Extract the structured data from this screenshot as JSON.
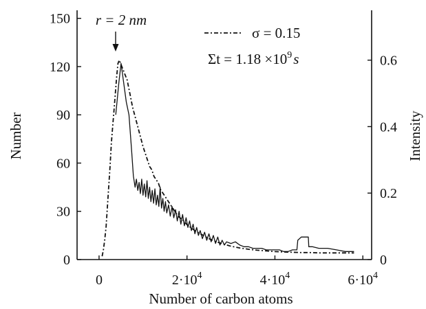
{
  "chart_data": {
    "type": "line",
    "xlabel": "Number of carbon atoms",
    "ylabel_left": "Number",
    "ylabel_right": "Intensity",
    "xlim": [
      -5000,
      62000
    ],
    "ylim_left": [
      0,
      155
    ],
    "ylim_right": [
      0,
      0.75
    ],
    "x_ticks": [
      0,
      20000,
      40000,
      60000
    ],
    "x_tick_labels": [
      "0",
      "2·10",
      "4·10",
      "6·10"
    ],
    "x_tick_label_exponent": "4",
    "y_left_ticks": [
      0,
      30,
      60,
      90,
      120,
      150
    ],
    "y_left_tick_labels": [
      "0",
      "30",
      "60",
      "90",
      "120",
      "150"
    ],
    "y_right_ticks": [
      0,
      0.2,
      0.4,
      0.6
    ],
    "y_right_tick_labels": [
      "0",
      "0.2",
      "0.4",
      "0.6"
    ],
    "grid": false,
    "legend_position": "top-right",
    "annotations": {
      "peak_label": "r = 2 nm",
      "legend_sigma": "σ = 0.15",
      "legend_time_prefix": "Σt = 1.18 ×10",
      "legend_time_exponent": "9",
      "legend_time_unit": "s"
    },
    "series": [
      {
        "style": "solid",
        "axis": "left",
        "x": [
          3800,
          4500,
          5000,
          5600,
          6200,
          6800,
          7400,
          7800,
          8200,
          8500,
          8800,
          9100,
          9400,
          9700,
          10000,
          10300,
          10600,
          10900,
          11200,
          11500,
          11800,
          12100,
          12400,
          12700,
          13000,
          13300,
          13600,
          13900,
          14200,
          14500,
          14800,
          15100,
          15400,
          15800,
          16200,
          16600,
          17000,
          17400,
          17800,
          18200,
          18600,
          19000,
          19400,
          19800,
          20200,
          20600,
          21000,
          21400,
          21800,
          22200,
          22600,
          23000,
          23500,
          24000,
          24500,
          25000,
          25500,
          26000,
          26500,
          27000,
          27500,
          28000,
          28500,
          29000,
          30000,
          31000,
          32000,
          33000,
          34000,
          35000,
          36000,
          37000,
          38000,
          39000,
          40000,
          41000,
          42000,
          43000,
          44000,
          45000,
          45200,
          46000,
          47000,
          47600,
          47700,
          48500,
          50000,
          52000,
          54000,
          56000,
          58000
        ],
        "y": [
          90,
          110,
          122,
          110,
          98,
          90,
          68,
          52,
          45,
          50,
          43,
          48,
          41,
          50,
          40,
          47,
          39,
          49,
          38,
          45,
          36,
          43,
          35,
          44,
          34,
          40,
          33,
          45,
          32,
          38,
          30,
          36,
          29,
          34,
          27,
          33,
          26,
          31,
          24,
          30,
          22,
          28,
          21,
          26,
          20,
          24,
          18,
          22,
          16,
          20,
          15,
          18,
          13,
          17,
          12,
          16,
          11,
          15,
          10,
          14,
          9,
          12,
          9,
          11,
          10,
          11,
          9,
          8,
          8,
          7,
          7,
          7,
          6,
          6,
          6,
          6,
          5,
          5,
          6,
          6,
          12,
          14,
          14,
          14,
          8,
          8,
          7,
          7,
          6,
          5,
          5
        ]
      },
      {
        "style": "dashed",
        "axis": "right",
        "name": "σ = 0.15",
        "x": [
          700,
          1000,
          1300,
          1600,
          1900,
          2200,
          2500,
          2800,
          3100,
          3400,
          3700,
          4000,
          4300,
          4600,
          4900,
          5200,
          5500,
          5800,
          6100,
          6400,
          6700,
          7000,
          7300,
          7600,
          8000,
          8400,
          8800,
          9200,
          9600,
          10000,
          10500,
          11000,
          11500,
          12000,
          12500,
          13000,
          13500,
          14000,
          15000,
          16000,
          17000,
          18000,
          19000,
          20000,
          21000,
          22000,
          23000,
          24000,
          25000,
          26000,
          27000,
          28000,
          29000,
          30000,
          32000,
          34000,
          36000,
          38000,
          40000,
          42000,
          44000,
          46000,
          48000,
          50000,
          52000,
          54000,
          56000,
          58000
        ],
        "y": [
          0.01,
          0.03,
          0.06,
          0.1,
          0.16,
          0.22,
          0.28,
          0.35,
          0.4,
          0.45,
          0.5,
          0.55,
          0.59,
          0.6,
          0.59,
          0.58,
          0.57,
          0.56,
          0.55,
          0.54,
          0.52,
          0.5,
          0.48,
          0.46,
          0.44,
          0.42,
          0.4,
          0.38,
          0.36,
          0.34,
          0.32,
          0.3,
          0.28,
          0.27,
          0.25,
          0.24,
          0.23,
          0.21,
          0.19,
          0.17,
          0.15,
          0.13,
          0.12,
          0.105,
          0.095,
          0.085,
          0.078,
          0.07,
          0.063,
          0.057,
          0.052,
          0.048,
          0.044,
          0.04,
          0.035,
          0.031,
          0.028,
          0.026,
          0.024,
          0.023,
          0.022,
          0.021,
          0.021,
          0.02,
          0.02,
          0.02,
          0.02,
          0.02
        ]
      }
    ]
  }
}
